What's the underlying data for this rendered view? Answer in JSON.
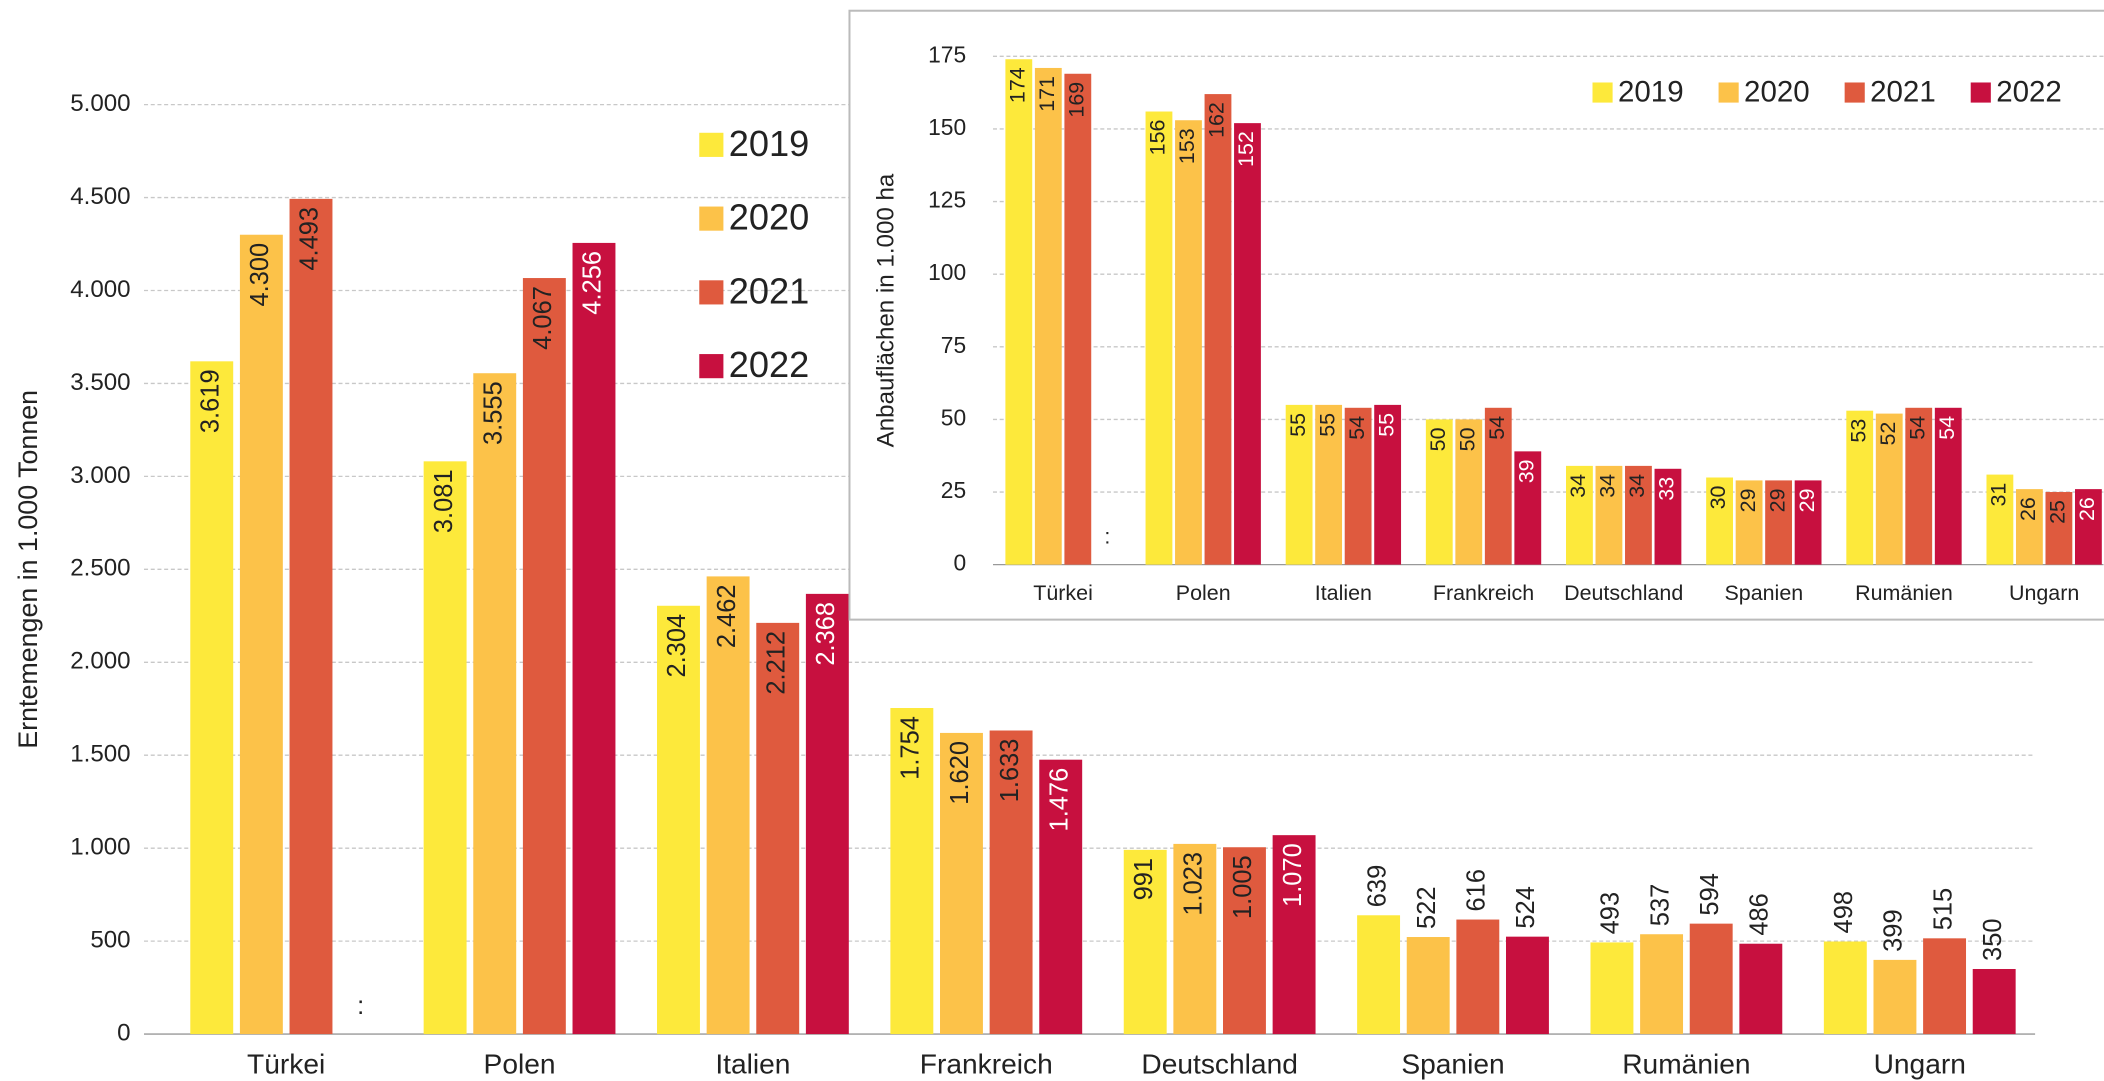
{
  "chart_data": [
    {
      "type": "bar",
      "y_label": "Erntemengen in 1.000 Tonnen",
      "categories": [
        "Türkei",
        "Polen",
        "Italien",
        "Frankreich",
        "Deutschland",
        "Spanien",
        "Rumänien",
        "Ungarn"
      ],
      "series": [
        {
          "name": "2019",
          "color": "#fde93b",
          "values": [
            3619,
            3081,
            2304,
            1754,
            991,
            639,
            493,
            498
          ],
          "value_labels": [
            "3.619",
            "3.081",
            "2.304",
            "1.754",
            "991",
            "639",
            "493",
            "498"
          ]
        },
        {
          "name": "2020",
          "color": "#fcc249",
          "values": [
            4300,
            3555,
            2462,
            1620,
            1023,
            522,
            537,
            399
          ],
          "value_labels": [
            "4.300",
            "3.555",
            "2.462",
            "1.620",
            "1.023",
            "522",
            "537",
            "399"
          ]
        },
        {
          "name": "2021",
          "color": "#df5a3e",
          "values": [
            4493,
            4067,
            2212,
            1633,
            1005,
            616,
            594,
            515
          ],
          "value_labels": [
            "4.493",
            "4.067",
            "2.212",
            "1.633",
            "1.005",
            "616",
            "594",
            "515"
          ]
        },
        {
          "name": "2022",
          "color": "#c7103f",
          "values": [
            null,
            4256,
            2368,
            1476,
            1070,
            524,
            486,
            350
          ],
          "value_labels": [
            ":",
            "4.256",
            "2.368",
            "1.476",
            "1.070",
            "524",
            "486",
            "350"
          ]
        }
      ],
      "ylim": [
        0,
        5000
      ],
      "yticks": [
        0,
        500,
        {
          "value": 1000,
          "label": "1.000"
        },
        {
          "value": 1500,
          "label": "1.500"
        },
        {
          "value": 2000,
          "label": "2.000"
        },
        {
          "value": 2500,
          "label": "2.500"
        },
        {
          "value": 3000,
          "label": "3.000"
        },
        {
          "value": 3500,
          "label": "3.500"
        },
        {
          "value": 4000,
          "label": "4.000"
        },
        {
          "value": 4500,
          "label": "4.500"
        },
        {
          "value": 5000,
          "label": "5.000"
        }
      ],
      "grid": true,
      "legend": "upper center"
    },
    {
      "type": "bar",
      "y_label": "Anbauflächen in 1.000 ha",
      "categories": [
        "Türkei",
        "Polen",
        "Italien",
        "Frankreich",
        "Deutschland",
        "Spanien",
        "Rumänien",
        "Ungarn"
      ],
      "series": [
        {
          "name": "2019",
          "color": "#fde93b",
          "values": [
            174,
            156,
            55,
            50,
            34,
            30,
            53,
            31
          ]
        },
        {
          "name": "2020",
          "color": "#fcc249",
          "values": [
            171,
            153,
            55,
            50,
            34,
            29,
            52,
            26
          ]
        },
        {
          "name": "2021",
          "color": "#df5a3e",
          "values": [
            169,
            162,
            54,
            54,
            34,
            29,
            54,
            25
          ]
        },
        {
          "name": "2022",
          "color": "#c7103f",
          "values": [
            null,
            152,
            55,
            39,
            33,
            29,
            54,
            26
          ],
          "value_labels": [
            ":",
            "152",
            "55",
            "39",
            "33",
            "29",
            "54",
            "26"
          ]
        }
      ],
      "ylim": [
        0,
        175
      ],
      "yticks": [
        0,
        25,
        50,
        75,
        100,
        125,
        150,
        175
      ],
      "grid": true,
      "legend": "upper right"
    }
  ]
}
